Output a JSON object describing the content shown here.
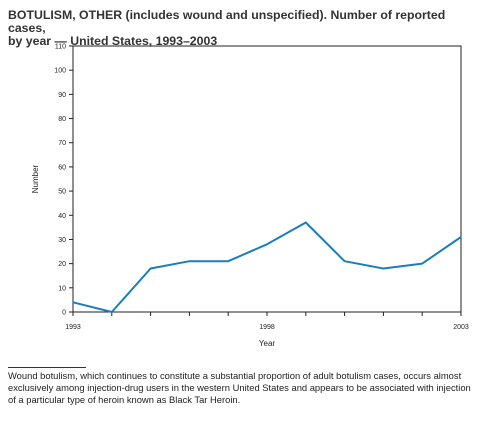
{
  "title_line1": "BOTULISM, OTHER (includes wound and unspecified). Number of reported cases,",
  "title_line2": "by year — United States, 1993–2003",
  "footnote": "Wound botulism, which continues to constitute a substantial proportion of adult botulism cases, occurs almost exclusively among injection-drug users in the western United States and appears to be associated with injection of a particular type of heroin known as Black Tar Heroin.",
  "chart_data": {
    "type": "line",
    "title": "BOTULISM, OTHER (includes wound and unspecified). Number of reported cases, by year — United States, 1993–2003",
    "xlabel": "Year",
    "ylabel": "Number",
    "x": [
      1993,
      1994,
      1995,
      1996,
      1997,
      1998,
      1999,
      2000,
      2001,
      2002,
      2003
    ],
    "x_tick_labels": [
      "1993",
      "1998",
      "2003"
    ],
    "x_tick_values": [
      1993,
      1998,
      2003
    ],
    "y_ticks": [
      0,
      10,
      20,
      30,
      40,
      50,
      60,
      70,
      80,
      90,
      100,
      110
    ],
    "xlim": [
      1993,
      2003
    ],
    "ylim": [
      0,
      110
    ],
    "grid": false,
    "line_color": "#1a7fb8",
    "series": [
      {
        "values": [
          4,
          0,
          18,
          21,
          21,
          28,
          37,
          21,
          18,
          20,
          31
        ]
      }
    ]
  }
}
